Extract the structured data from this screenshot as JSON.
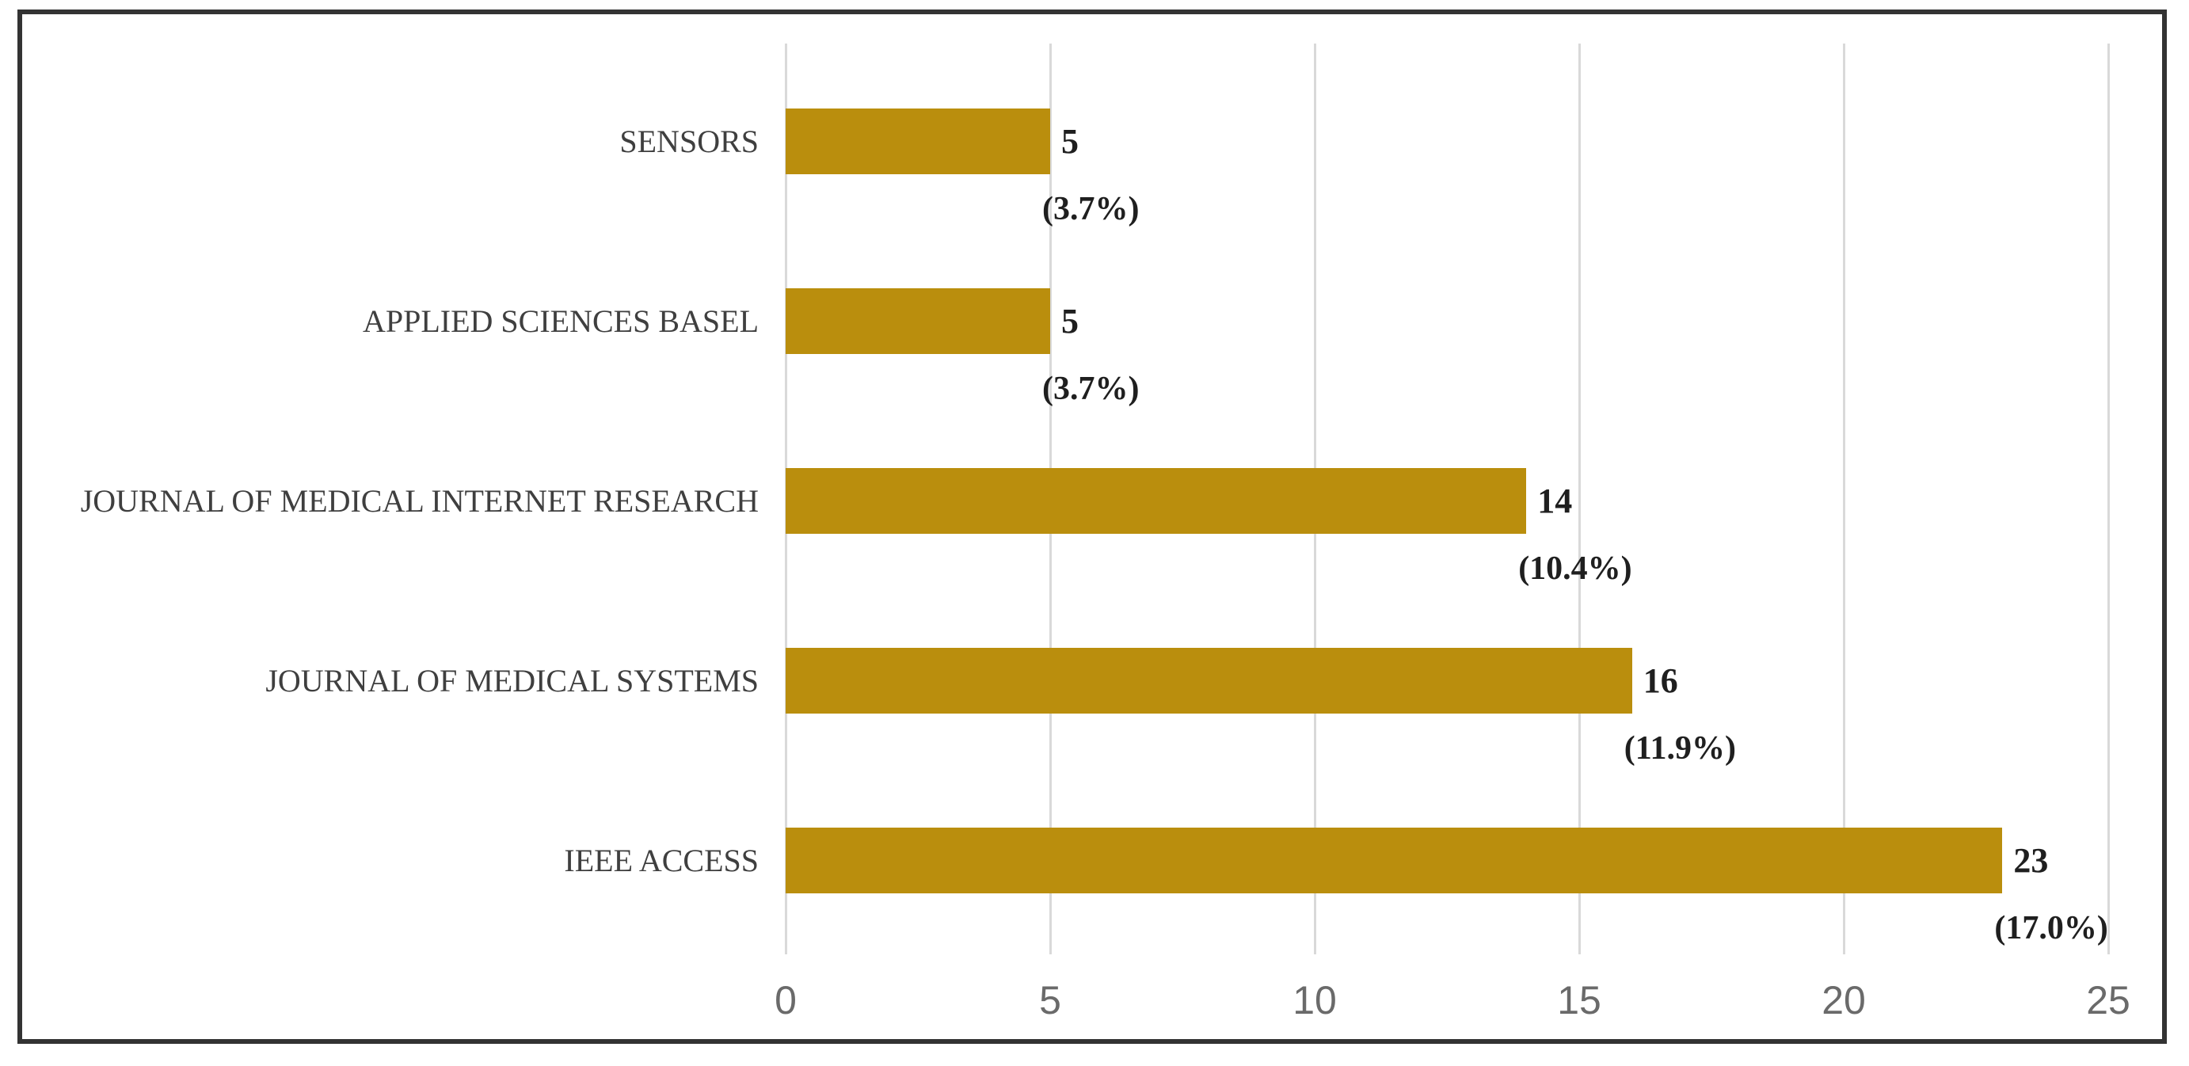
{
  "chart_data": {
    "type": "bar",
    "orientation": "horizontal",
    "title": "",
    "xlabel": "",
    "ylabel": "",
    "categories": [
      "SENSORS",
      "APPLIED SCIENCES BASEL",
      "JOURNAL OF MEDICAL INTERNET RESEARCH",
      "JOURNAL OF MEDICAL SYSTEMS",
      "IEEE ACCESS"
    ],
    "values": [
      5,
      5,
      14,
      16,
      23
    ],
    "value_labels": [
      "5",
      "5",
      "14",
      "16",
      "23"
    ],
    "percentages": [
      3.7,
      3.7,
      10.4,
      11.9,
      17.0
    ],
    "percent_labels": [
      "(3.7%)",
      "(3.7%)",
      "(10.4%)",
      "(11.9%)",
      "(17.0%)"
    ],
    "x_ticks": [
      0,
      5,
      10,
      15,
      20,
      25
    ],
    "xlim": [
      0,
      25
    ],
    "grid": "vertical",
    "legend": "none",
    "colors": {
      "bar": "#BA8E0D",
      "gridline": "#D9D9D9",
      "category_text": "#3F3F3F",
      "value_text": "#1F1F1F",
      "tick_text": "#6A6A6A",
      "frame_border": "#333333",
      "background": "#FFFFFF"
    }
  }
}
